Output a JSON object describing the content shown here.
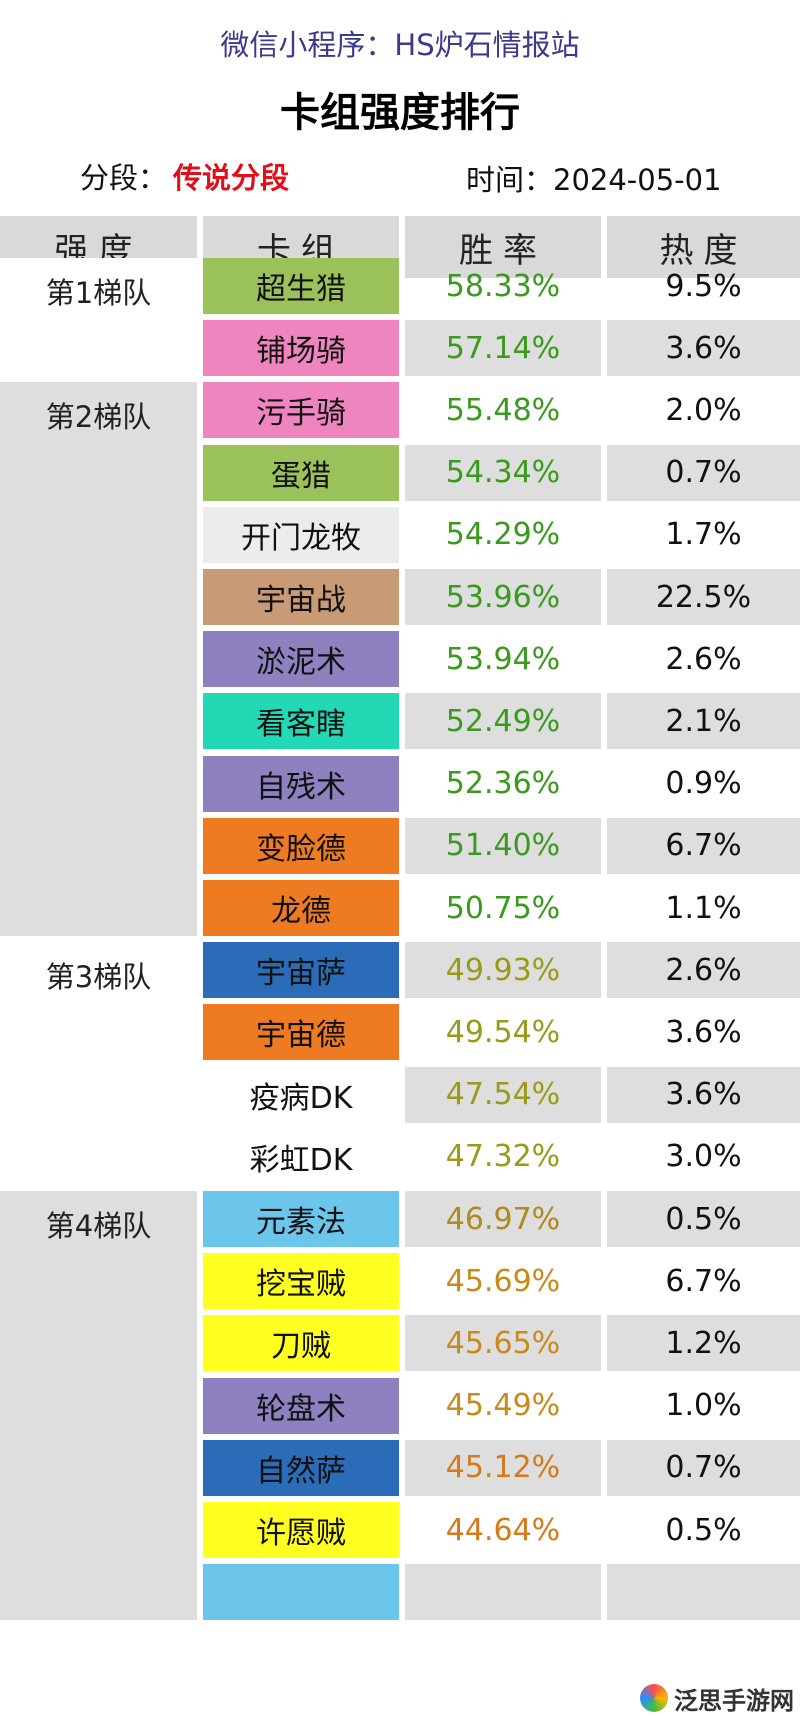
{
  "header": {
    "source": "微信小程序：HS炉石情报站",
    "title": "卡组强度排行",
    "segment_label": "分段：",
    "segment_value": "传说分段",
    "time": "时间：2024-05-01"
  },
  "columns": [
    "强度",
    "卡组",
    "胜率",
    "热度"
  ],
  "tiers": [
    {
      "label": "第1梯队",
      "band_color": "#ffffff",
      "start": 0,
      "count": 2
    },
    {
      "label": "第2梯队",
      "band_color": "#dedede",
      "start": 2,
      "count": 9
    },
    {
      "label": "第3梯队",
      "band_color": "#ffffff",
      "start": 11,
      "count": 4
    },
    {
      "label": "第4梯队",
      "band_color": "#dedede",
      "start": 15,
      "count": 7
    }
  ],
  "rows": [
    {
      "deck": "超生猎",
      "winrate": "58.33%",
      "heat": "9.5%",
      "deck_color": "#9bc15a",
      "winrate_color": "#3a9a1e"
    },
    {
      "deck": "铺场骑",
      "winrate": "57.14%",
      "heat": "3.6%",
      "deck_color": "#ef85bf",
      "winrate_color": "#3a9a1e"
    },
    {
      "deck": "污手骑",
      "winrate": "55.48%",
      "heat": "2.0%",
      "deck_color": "#ef85bf",
      "winrate_color": "#3a9a1e"
    },
    {
      "deck": "蛋猎",
      "winrate": "54.34%",
      "heat": "0.7%",
      "deck_color": "#9bc15a",
      "winrate_color": "#3a9a1e"
    },
    {
      "deck": "开门龙牧",
      "winrate": "54.29%",
      "heat": "1.7%",
      "deck_color": "#ececec",
      "winrate_color": "#3a9a1e"
    },
    {
      "deck": "宇宙战",
      "winrate": "53.96%",
      "heat": "22.5%",
      "deck_color": "#c99a76",
      "winrate_color": "#3a9a1e"
    },
    {
      "deck": "淤泥术",
      "winrate": "53.94%",
      "heat": "2.6%",
      "deck_color": "#8f80c0",
      "winrate_color": "#3a9a1e"
    },
    {
      "deck": "看客瞎",
      "winrate": "52.49%",
      "heat": "2.1%",
      "deck_color": "#23d9b5",
      "winrate_color": "#3a9a1e"
    },
    {
      "deck": "自残术",
      "winrate": "52.36%",
      "heat": "0.9%",
      "deck_color": "#8f80c0",
      "winrate_color": "#3a9a1e"
    },
    {
      "deck": "变脸德",
      "winrate": "51.40%",
      "heat": "6.7%",
      "deck_color": "#ee7a22",
      "winrate_color": "#3a9a1e"
    },
    {
      "deck": "龙德",
      "winrate": "50.75%",
      "heat": "1.1%",
      "deck_color": "#ee7a22",
      "winrate_color": "#3a9a1e"
    },
    {
      "deck": "宇宙萨",
      "winrate": "49.93%",
      "heat": "2.6%",
      "deck_color": "#2a6cb8",
      "winrate_color": "#9a9a1a"
    },
    {
      "deck": "宇宙德",
      "winrate": "49.54%",
      "heat": "3.6%",
      "deck_color": "#ee7a22",
      "winrate_color": "#9a9a1a"
    },
    {
      "deck": "疫病DK",
      "winrate": "47.54%",
      "heat": "3.6%",
      "deck_color": "#ffffff",
      "winrate_color": "#9a9a1a"
    },
    {
      "deck": "彩虹DK",
      "winrate": "47.32%",
      "heat": "3.0%",
      "deck_color": "#ffffff",
      "winrate_color": "#9a9a1a"
    },
    {
      "deck": "元素法",
      "winrate": "46.97%",
      "heat": "0.5%",
      "deck_color": "#6cc6ec",
      "winrate_color": "#b08a1a"
    },
    {
      "deck": "挖宝贼",
      "winrate": "45.69%",
      "heat": "6.7%",
      "deck_color": "#ffff22",
      "winrate_color": "#c88a1a"
    },
    {
      "deck": "刀贼",
      "winrate": "45.65%",
      "heat": "1.2%",
      "deck_color": "#ffff22",
      "winrate_color": "#c88a1a"
    },
    {
      "deck": "轮盘术",
      "winrate": "45.49%",
      "heat": "1.0%",
      "deck_color": "#8f80c0",
      "winrate_color": "#c88a1a"
    },
    {
      "deck": "自然萨",
      "winrate": "45.12%",
      "heat": "0.7%",
      "deck_color": "#2a6cb8",
      "winrate_color": "#d47a1a"
    },
    {
      "deck": "许愿贼",
      "winrate": "44.64%",
      "heat": "0.5%",
      "deck_color": "#ffff22",
      "winrate_color": "#d47a1a"
    },
    {
      "deck": "",
      "winrate": "",
      "heat": "",
      "deck_color": "#6cc6ec",
      "winrate_color": "#d47a1a"
    }
  ],
  "watermark": {
    "text": "泛思手游网",
    "icon": "colorful-logo-icon"
  }
}
